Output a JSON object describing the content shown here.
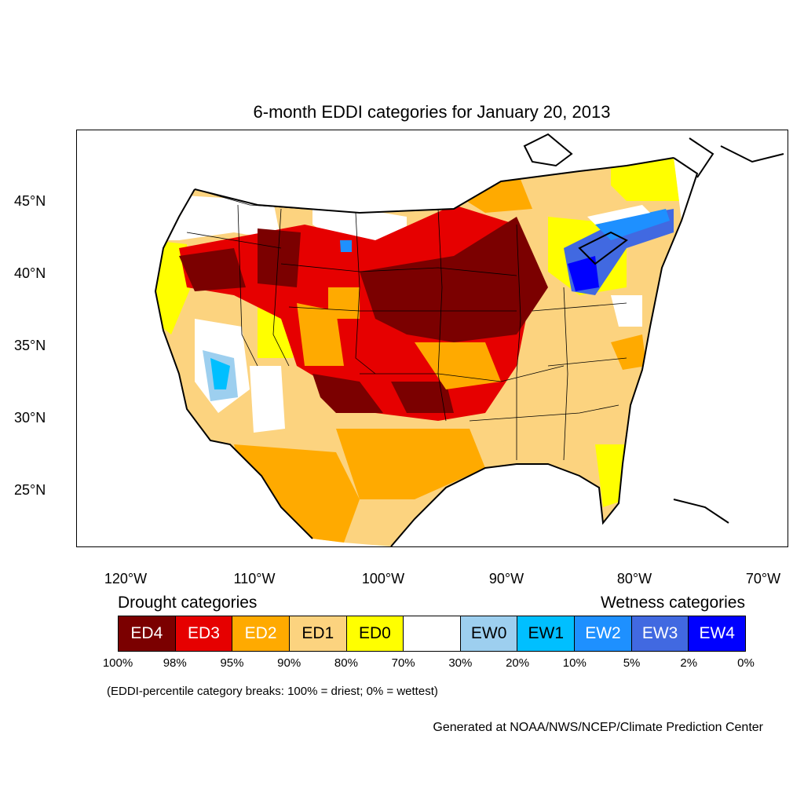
{
  "title": "6-month EDDI categories for January 20, 2013",
  "lat_labels": [
    "45°N",
    "40°N",
    "35°N",
    "30°N",
    "25°N"
  ],
  "lon_labels": [
    "120°W",
    "110°W",
    "100°W",
    "90°W",
    "80°W",
    "70°W"
  ],
  "legend": {
    "drought_heading": "Drought categories",
    "wetness_heading": "Wetness categories",
    "categories": [
      {
        "label": "ED4",
        "color": "#7b0000",
        "text_color": "#ffffff"
      },
      {
        "label": "ED3",
        "color": "#e60000",
        "text_color": "#ffffff"
      },
      {
        "label": "ED2",
        "color": "#ffaa00",
        "text_color": "#ffffff"
      },
      {
        "label": "ED1",
        "color": "#fcd37f",
        "text_color": "#000000"
      },
      {
        "label": "ED0",
        "color": "#ffff00",
        "text_color": "#000000"
      },
      {
        "label": "",
        "color": "#ffffff",
        "text_color": "#000000"
      },
      {
        "label": "EW0",
        "color": "#9dcfef",
        "text_color": "#000000"
      },
      {
        "label": "EW1",
        "color": "#00bfff",
        "text_color": "#000000"
      },
      {
        "label": "EW2",
        "color": "#1e90ff",
        "text_color": "#ffffff"
      },
      {
        "label": "EW3",
        "color": "#4169e1",
        "text_color": "#ffffff"
      },
      {
        "label": "EW4",
        "color": "#0000ff",
        "text_color": "#ffffff"
      }
    ],
    "breaks": [
      "100%",
      "98%",
      "95%",
      "90%",
      "80%",
      "70%",
      "30%",
      "20%",
      "10%",
      "5%",
      "2%",
      "0%"
    ]
  },
  "note": "(EDDI-percentile category breaks: 100% = driest; 0% = wettest)",
  "credit": "Generated at NOAA/NWS/NCEP/Climate Prediction Center"
}
